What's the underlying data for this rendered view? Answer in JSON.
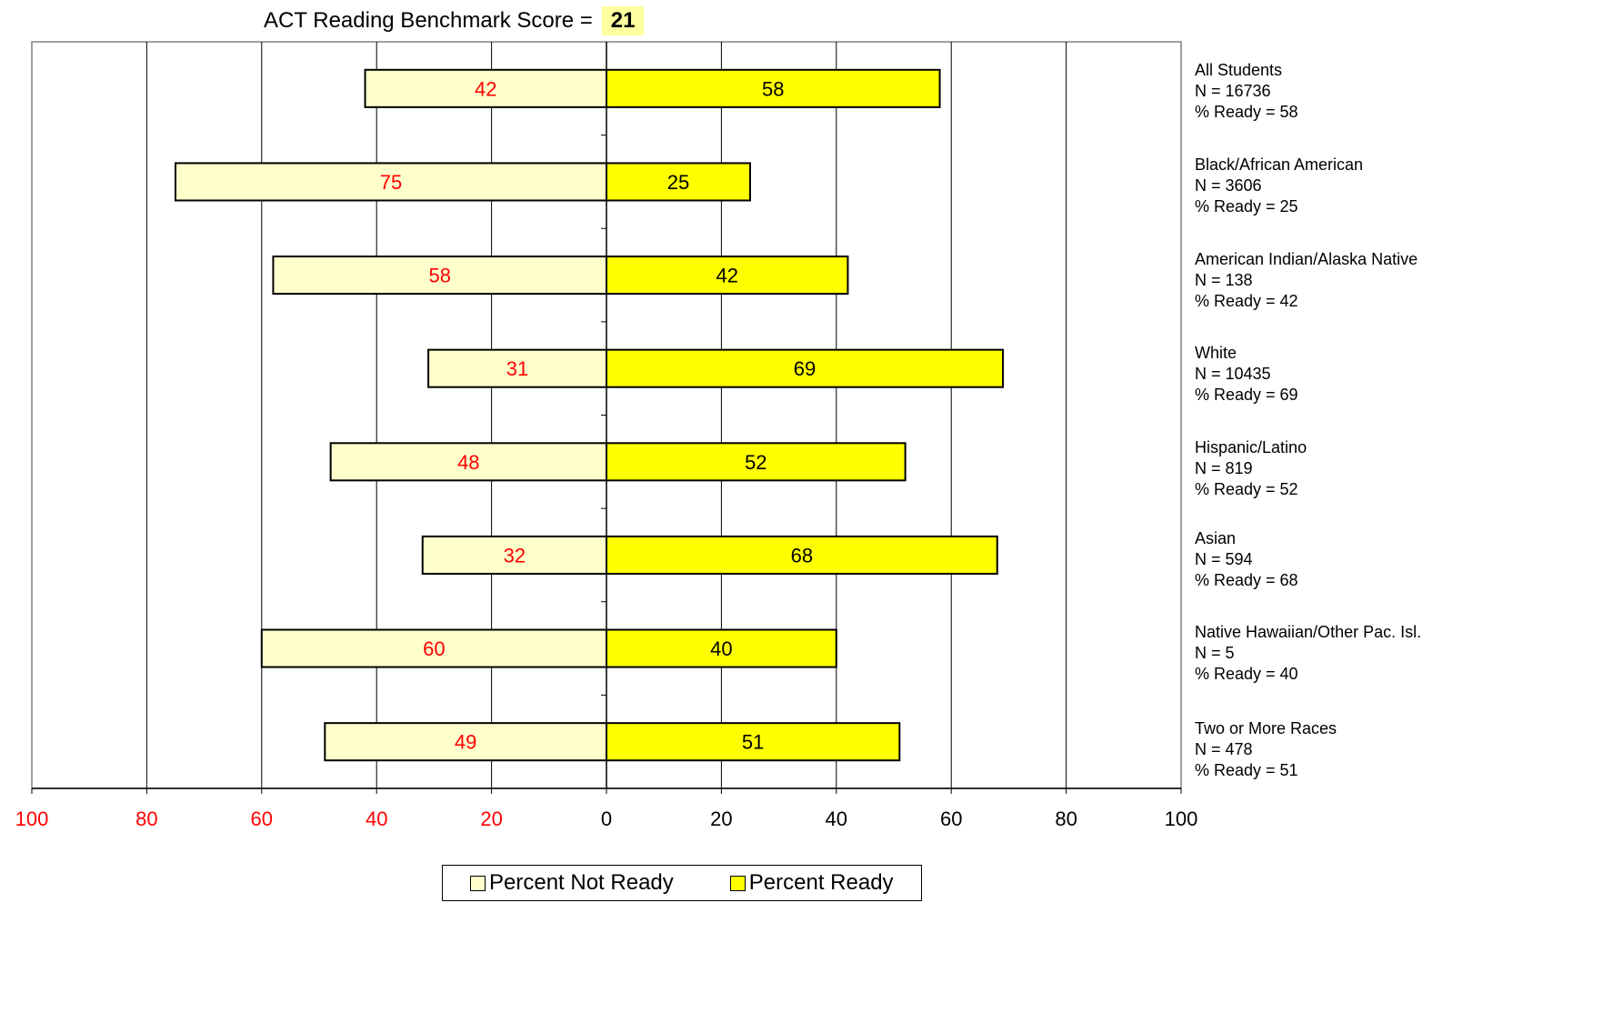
{
  "header": {
    "label": "ACT Reading Benchmark Score =",
    "score": "21"
  },
  "legend": {
    "not_ready_label": "Percent Not Ready",
    "ready_label": "Percent Ready"
  },
  "colors": {
    "not_ready_fill": "#ffffcc",
    "ready_fill": "#ffff00",
    "not_ready_text": "#ff0000",
    "ready_text": "#000000",
    "left_tick_text": "#ff0000",
    "score_highlight": "#ffffa0"
  },
  "groups": [
    {
      "line1": "All Students",
      "line2": "N = 16736",
      "line3": "% Ready = 58"
    },
    {
      "line1": "Black/African American",
      "line2": "N = 3606",
      "line3": "% Ready = 25"
    },
    {
      "line1": "American Indian/Alaska Native",
      "line2": "N = 138",
      "line3": "% Ready = 42"
    },
    {
      "line1": "White",
      "line2": "N = 10435",
      "line3": "% Ready = 69"
    },
    {
      "line1": "Hispanic/Latino",
      "line2": "N = 819",
      "line3": "% Ready = 52"
    },
    {
      "line1": "Asian",
      "line2": "N = 594",
      "line3": "% Ready = 68"
    },
    {
      "line1": "Native Hawaiian/Other Pac. Isl.",
      "line2": "N = 5",
      "line3": "% Ready = 40"
    },
    {
      "line1": "Two or More Races",
      "line2": "N = 478",
      "line3": "% Ready = 51"
    }
  ],
  "chart_data": {
    "type": "bar",
    "orientation": "horizontal-diverging",
    "categories": [
      "All Students",
      "Black/African American",
      "American Indian/Alaska Native",
      "White",
      "Hispanic/Latino",
      "Asian",
      "Native Hawaiian/Other Pac. Isl.",
      "Two or More Races"
    ],
    "series": [
      {
        "name": "Percent Not Ready",
        "values": [
          42,
          75,
          58,
          31,
          48,
          32,
          60,
          49
        ]
      },
      {
        "name": "Percent Ready",
        "values": [
          58,
          25,
          42,
          69,
          52,
          68,
          40,
          51
        ]
      }
    ],
    "xlim": [
      -100,
      100
    ],
    "x_tick_labels": [
      "100",
      "80",
      "60",
      "40",
      "20",
      "0",
      "20",
      "40",
      "60",
      "80",
      "100"
    ],
    "grid": true,
    "legend_position": "bottom"
  }
}
